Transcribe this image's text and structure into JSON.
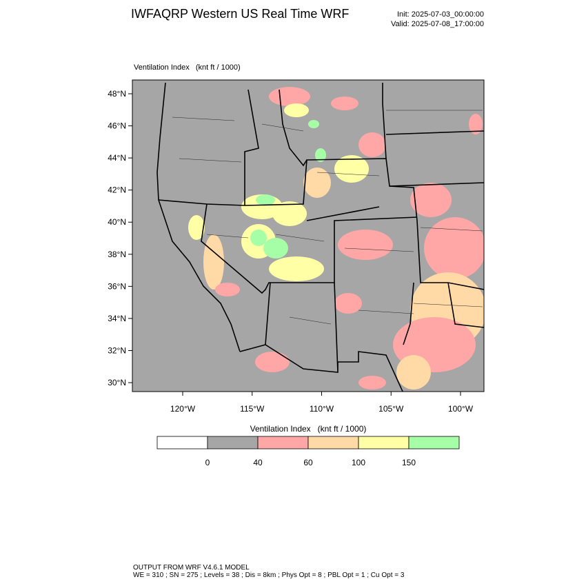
{
  "header": {
    "title": "IWFAQRP Western US Real Time WRF",
    "init": "Init: 2025-07-03_00:00:00",
    "valid": "Valid: 2025-07-08_17:00:00"
  },
  "map": {
    "subtitle": "Ventilation Index   (knt ft / 1000)",
    "lat_ticks": [
      {
        "value": 48,
        "label": "48°N"
      },
      {
        "value": 46,
        "label": "46°N"
      },
      {
        "value": 44,
        "label": "44°N"
      },
      {
        "value": 42,
        "label": "42°N"
      },
      {
        "value": 40,
        "label": "40°N"
      },
      {
        "value": 38,
        "label": "38°N"
      },
      {
        "value": 36,
        "label": "36°N"
      },
      {
        "value": 34,
        "label": "34°N"
      },
      {
        "value": 32,
        "label": "32°N"
      },
      {
        "value": 30,
        "label": "30°N"
      }
    ],
    "lon_ticks": [
      {
        "value": -120,
        "label": "120°W"
      },
      {
        "value": -115,
        "label": "115°W"
      },
      {
        "value": -110,
        "label": "110°W"
      },
      {
        "value": -105,
        "label": "105°W"
      },
      {
        "value": -100,
        "label": "100°W"
      }
    ]
  },
  "colorbar": {
    "title": "Ventilation Index   (knt ft / 1000)",
    "levels": [
      0,
      40,
      60,
      100,
      150
    ],
    "colors": [
      "#ffffff",
      "#a6a6a6",
      "#ffa6a6",
      "#ffd9a6",
      "#ffffa6",
      "#a6ffa6"
    ]
  },
  "footer": {
    "line1": "OUTPUT FROM WRF V4.6.1 MODEL",
    "line2": "WE = 310 ; SN = 275 ; Levels = 38 ; Dis = 8km ; Phys Opt = 8 ; PBL Opt = 1 ; Cu Opt = 3"
  }
}
